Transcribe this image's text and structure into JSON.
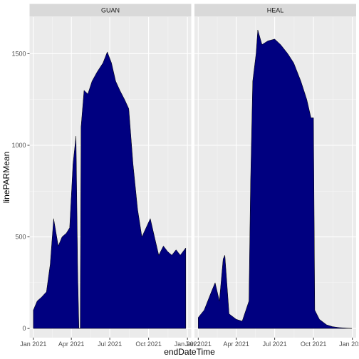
{
  "chart_data": {
    "type": "area",
    "xlabel": "endDateTime",
    "ylabel": "linePARMean",
    "facets": [
      "GUAN",
      "HEAL"
    ],
    "ylim": [
      -50,
      1700
    ],
    "y_ticks": [
      0,
      500,
      1000,
      1500
    ],
    "xlim": [
      "2020-12-23",
      "2022-01-10"
    ],
    "x_ticks": [
      {
        "date": "2021-01-01",
        "label": "Jan 2021"
      },
      {
        "date": "2021-04-01",
        "label": "Apr 2021"
      },
      {
        "date": "2021-07-01",
        "label": "Jul 2021"
      },
      {
        "date": "2021-10-01",
        "label": "Oct 2021"
      },
      {
        "date": "2022-01-01",
        "label": "Jan 2022"
      }
    ],
    "series": [
      {
        "facet": "GUAN",
        "fill": "#000080",
        "outline": "#000000",
        "points": [
          [
            "2021-01-01",
            100
          ],
          [
            "2021-01-10",
            150
          ],
          [
            "2021-01-20",
            170
          ],
          [
            "2021-02-01",
            200
          ],
          [
            "2021-02-10",
            350
          ],
          [
            "2021-02-18",
            600
          ],
          [
            "2021-03-01",
            450
          ],
          [
            "2021-03-10",
            500
          ],
          [
            "2021-03-20",
            520
          ],
          [
            "2021-03-28",
            550
          ],
          [
            "2021-04-05",
            900
          ],
          [
            "2021-04-12",
            1050
          ],
          [
            "2021-04-16",
            310
          ],
          [
            "2021-04-19",
            0
          ],
          [
            "2021-04-22",
            0
          ],
          [
            "2021-04-24",
            1100
          ],
          [
            "2021-05-01",
            1300
          ],
          [
            "2021-05-10",
            1280
          ],
          [
            "2021-05-20",
            1350
          ],
          [
            "2021-06-01",
            1400
          ],
          [
            "2021-06-15",
            1450
          ],
          [
            "2021-06-25",
            1510
          ],
          [
            "2021-07-05",
            1450
          ],
          [
            "2021-07-15",
            1350
          ],
          [
            "2021-07-25",
            1300
          ],
          [
            "2021-08-05",
            1250
          ],
          [
            "2021-08-15",
            1200
          ],
          [
            "2021-08-25",
            900
          ],
          [
            "2021-09-05",
            650
          ],
          [
            "2021-09-15",
            500
          ],
          [
            "2021-09-25",
            550
          ],
          [
            "2021-10-05",
            600
          ],
          [
            "2021-10-15",
            500
          ],
          [
            "2021-10-25",
            400
          ],
          [
            "2021-11-05",
            450
          ],
          [
            "2021-11-15",
            420
          ],
          [
            "2021-11-25",
            400
          ],
          [
            "2021-12-05",
            430
          ],
          [
            "2021-12-15",
            400
          ],
          [
            "2021-12-28",
            440
          ]
        ]
      },
      {
        "facet": "HEAL",
        "fill": "#000080",
        "outline": "#000000",
        "points": [
          [
            "2021-01-01",
            60
          ],
          [
            "2021-01-15",
            100
          ],
          [
            "2021-02-01",
            200
          ],
          [
            "2021-02-10",
            250
          ],
          [
            "2021-02-20",
            150
          ],
          [
            "2021-03-01",
            380
          ],
          [
            "2021-03-05",
            400
          ],
          [
            "2021-03-15",
            80
          ],
          [
            "2021-04-01",
            50
          ],
          [
            "2021-04-15",
            40
          ],
          [
            "2021-05-01",
            150
          ],
          [
            "2021-05-05",
            800
          ],
          [
            "2021-05-10",
            1350
          ],
          [
            "2021-05-18",
            1500
          ],
          [
            "2021-05-22",
            1630
          ],
          [
            "2021-06-01",
            1550
          ],
          [
            "2021-06-15",
            1570
          ],
          [
            "2021-07-01",
            1580
          ],
          [
            "2021-07-15",
            1550
          ],
          [
            "2021-08-01",
            1500
          ],
          [
            "2021-08-15",
            1450
          ],
          [
            "2021-09-01",
            1350
          ],
          [
            "2021-09-15",
            1250
          ],
          [
            "2021-09-25",
            1150
          ],
          [
            "2021-10-01",
            1150
          ],
          [
            "2021-10-04",
            100
          ],
          [
            "2021-10-15",
            50
          ],
          [
            "2021-11-01",
            20
          ],
          [
            "2021-11-15",
            10
          ],
          [
            "2021-12-01",
            5
          ],
          [
            "2021-12-31",
            0
          ]
        ]
      }
    ]
  }
}
